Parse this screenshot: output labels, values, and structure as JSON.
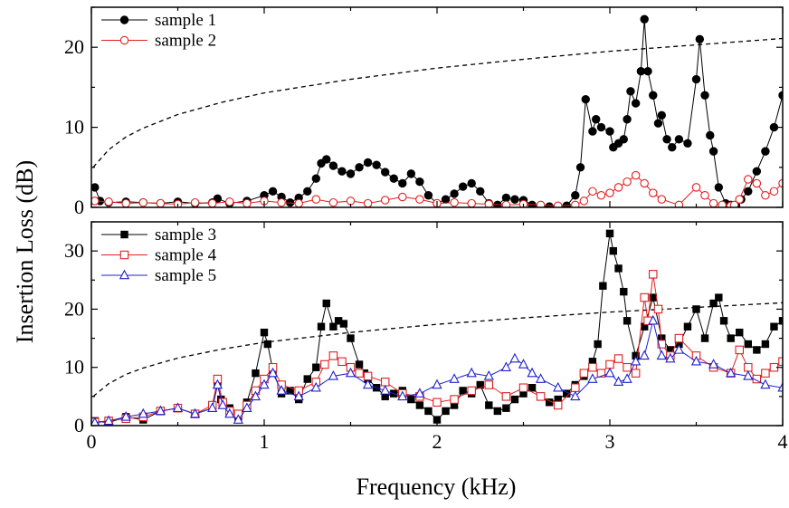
{
  "figure": {
    "ylabel": "Insertion Loss (dB)",
    "xlabel": "Frequency (kHz)"
  },
  "chart_data": [
    {
      "type": "scatter",
      "panel": "top",
      "xlim": [
        0,
        4
      ],
      "ylim": [
        0,
        25
      ],
      "yticks": [
        0,
        10,
        20
      ],
      "xticks": [
        0,
        1,
        2,
        3,
        4
      ],
      "legend_position": "top-left",
      "series": [
        {
          "name": "sample 1",
          "marker": "filled-circle",
          "color": "#000000",
          "x": [
            0.02,
            0.05,
            0.1,
            0.2,
            0.3,
            0.4,
            0.5,
            0.6,
            0.7,
            0.73,
            0.8,
            0.9,
            1.0,
            1.05,
            1.1,
            1.15,
            1.2,
            1.25,
            1.3,
            1.33,
            1.36,
            1.4,
            1.45,
            1.5,
            1.55,
            1.6,
            1.65,
            1.7,
            1.75,
            1.8,
            1.85,
            1.9,
            1.95,
            2.0,
            2.05,
            2.1,
            2.15,
            2.2,
            2.25,
            2.3,
            2.35,
            2.4,
            2.45,
            2.5,
            2.55,
            2.6,
            2.65,
            2.7,
            2.75,
            2.8,
            2.83,
            2.86,
            2.9,
            2.92,
            2.95,
            3.0,
            3.02,
            3.05,
            3.08,
            3.1,
            3.12,
            3.15,
            3.18,
            3.2,
            3.22,
            3.25,
            3.28,
            3.3,
            3.33,
            3.36,
            3.4,
            3.45,
            3.5,
            3.52,
            3.55,
            3.58,
            3.6,
            3.63,
            3.67,
            3.7,
            3.73,
            3.76,
            3.8,
            3.85,
            3.9,
            3.95,
            4.0
          ],
          "y": [
            2.5,
            0.8,
            0.6,
            0.7,
            0.6,
            0.5,
            0.7,
            0.5,
            0.6,
            1.1,
            0.5,
            0.8,
            1.5,
            2.0,
            1.3,
            0.6,
            1.2,
            2.0,
            3.6,
            5.5,
            6.0,
            5.2,
            4.5,
            4.2,
            5.0,
            5.6,
            5.3,
            4.4,
            3.6,
            3.0,
            4.2,
            3.2,
            1.5,
            0.5,
            1.0,
            1.7,
            2.6,
            3.0,
            2.0,
            0.5,
            0.3,
            1.2,
            1.0,
            0.9,
            0.3,
            0.1,
            0.1,
            0.1,
            0.2,
            1.5,
            5.0,
            13.5,
            9.5,
            11.0,
            10.0,
            9.5,
            7.5,
            8.0,
            8.5,
            11.0,
            14.5,
            13.0,
            17.0,
            23.5,
            17.0,
            14.0,
            10.5,
            11.5,
            8.5,
            7.5,
            8.5,
            8.0,
            16.0,
            21.0,
            14.0,
            9.0,
            7.0,
            2.5,
            0.5,
            0.3,
            0.2,
            1.0,
            2.0,
            4.5,
            7.0,
            10.0,
            14.0
          ]
        },
        {
          "name": "sample 2",
          "marker": "open-circle",
          "color": "#e02020",
          "x": [
            0.02,
            0.1,
            0.2,
            0.3,
            0.4,
            0.5,
            0.6,
            0.7,
            0.8,
            0.9,
            1.0,
            1.1,
            1.2,
            1.3,
            1.4,
            1.5,
            1.6,
            1.7,
            1.8,
            1.9,
            2.0,
            2.1,
            2.2,
            2.3,
            2.4,
            2.5,
            2.6,
            2.7,
            2.8,
            2.85,
            2.9,
            2.95,
            3.0,
            3.05,
            3.1,
            3.15,
            3.2,
            3.25,
            3.3,
            3.4,
            3.5,
            3.55,
            3.6,
            3.65,
            3.7,
            3.72,
            3.75,
            3.8,
            3.85,
            3.9,
            3.95,
            4.0
          ],
          "y": [
            0.8,
            0.7,
            0.5,
            0.6,
            0.5,
            0.4,
            0.6,
            0.5,
            0.7,
            0.5,
            0.8,
            0.6,
            0.5,
            1.0,
            0.6,
            0.8,
            0.5,
            0.9,
            1.3,
            1.0,
            0.5,
            0.6,
            0.5,
            0.4,
            0.3,
            0.4,
            0.3,
            0.2,
            0.3,
            0.8,
            2.0,
            1.5,
            1.8,
            2.5,
            3.2,
            4.0,
            3.0,
            1.8,
            1.0,
            0.3,
            2.5,
            1.5,
            0.5,
            0.3,
            0.2,
            0.3,
            1.0,
            3.5,
            3.0,
            1.5,
            2.0,
            3.0
          ]
        }
      ],
      "reference_curve": {
        "style": "dashed",
        "x": [
          0.01,
          0.1,
          0.2,
          0.3,
          0.5,
          0.75,
          1.0,
          1.5,
          2.0,
          2.5,
          3.0,
          3.5,
          4.0
        ],
        "y": [
          5.0,
          7.2,
          8.8,
          9.9,
          11.6,
          13.1,
          14.3,
          16.0,
          17.4,
          18.5,
          19.5,
          20.3,
          21.1
        ]
      }
    },
    {
      "type": "scatter",
      "panel": "bottom",
      "xlim": [
        0,
        4
      ],
      "ylim": [
        0,
        35
      ],
      "yticks": [
        0,
        10,
        20,
        30
      ],
      "xticks": [
        0,
        1,
        2,
        3,
        4
      ],
      "legend_position": "top-left",
      "series": [
        {
          "name": "sample 3",
          "marker": "filled-square",
          "color": "#000000",
          "x": [
            0.02,
            0.1,
            0.2,
            0.3,
            0.4,
            0.5,
            0.6,
            0.7,
            0.73,
            0.75,
            0.8,
            0.85,
            0.9,
            0.95,
            1.0,
            1.02,
            1.05,
            1.1,
            1.15,
            1.2,
            1.25,
            1.3,
            1.33,
            1.36,
            1.4,
            1.43,
            1.46,
            1.5,
            1.55,
            1.58,
            1.6,
            1.65,
            1.7,
            1.75,
            1.8,
            1.85,
            1.9,
            1.95,
            2.0,
            2.05,
            2.1,
            2.15,
            2.2,
            2.25,
            2.3,
            2.35,
            2.4,
            2.45,
            2.5,
            2.55,
            2.6,
            2.65,
            2.7,
            2.75,
            2.8,
            2.85,
            2.9,
            2.93,
            2.96,
            3.0,
            3.02,
            3.05,
            3.08,
            3.1,
            3.15,
            3.2,
            3.25,
            3.3,
            3.35,
            3.4,
            3.45,
            3.5,
            3.55,
            3.6,
            3.63,
            3.66,
            3.7,
            3.75,
            3.8,
            3.85,
            3.9,
            3.95,
            4.0
          ],
          "y": [
            0.8,
            0.5,
            1.5,
            1.0,
            2.5,
            3.0,
            2.0,
            3.0,
            7.0,
            4.5,
            3.0,
            1.5,
            4.0,
            9.0,
            16.0,
            14.0,
            9.5,
            5.5,
            6.0,
            4.5,
            8.0,
            10.0,
            17.0,
            21.0,
            17.0,
            18.0,
            17.5,
            15.0,
            10.5,
            9.0,
            8.0,
            6.5,
            5.0,
            5.5,
            6.0,
            4.5,
            3.5,
            2.5,
            1.0,
            2.5,
            3.5,
            6.0,
            5.5,
            7.0,
            3.5,
            2.5,
            3.0,
            4.5,
            5.5,
            6.5,
            5.0,
            4.0,
            4.5,
            5.5,
            7.0,
            8.5,
            11.0,
            14.0,
            24.0,
            33.0,
            30.0,
            27.0,
            23.0,
            18.0,
            12.0,
            17.0,
            22.0,
            15.0,
            13.0,
            14.0,
            17.0,
            20.0,
            15.0,
            21.0,
            22.0,
            18.0,
            15.0,
            16.0,
            14.0,
            13.0,
            14.0,
            17.0,
            18.0
          ]
        },
        {
          "name": "sample 4",
          "marker": "open-square",
          "color": "#e02020",
          "x": [
            0.02,
            0.1,
            0.2,
            0.3,
            0.4,
            0.5,
            0.6,
            0.7,
            0.73,
            0.76,
            0.8,
            0.85,
            0.9,
            0.95,
            1.0,
            1.05,
            1.1,
            1.2,
            1.3,
            1.35,
            1.4,
            1.45,
            1.5,
            1.55,
            1.6,
            1.7,
            1.8,
            1.9,
            2.0,
            2.1,
            2.2,
            2.3,
            2.4,
            2.5,
            2.6,
            2.7,
            2.8,
            2.85,
            2.9,
            2.95,
            3.0,
            3.05,
            3.1,
            3.15,
            3.2,
            3.22,
            3.25,
            3.28,
            3.3,
            3.35,
            3.4,
            3.5,
            3.6,
            3.7,
            3.75,
            3.8,
            3.85,
            3.9,
            3.95,
            4.0
          ],
          "y": [
            0.6,
            0.8,
            1.2,
            1.5,
            2.5,
            3.0,
            2.0,
            3.5,
            8.0,
            4.0,
            2.5,
            2.0,
            3.5,
            6.0,
            8.0,
            10.0,
            7.0,
            6.0,
            7.5,
            10.5,
            12.0,
            11.0,
            10.0,
            9.0,
            8.5,
            7.5,
            5.5,
            5.0,
            4.0,
            4.5,
            6.0,
            7.0,
            5.0,
            6.5,
            5.0,
            3.5,
            6.5,
            9.0,
            10.0,
            9.0,
            10.5,
            11.5,
            10.0,
            9.0,
            22.0,
            18.0,
            26.0,
            20.0,
            14.0,
            12.0,
            15.0,
            12.0,
            10.0,
            9.0,
            13.0,
            10.0,
            8.0,
            9.0,
            10.0,
            11.0
          ]
        },
        {
          "name": "sample 5",
          "marker": "open-triangle",
          "color": "#2020d0",
          "x": [
            0.02,
            0.1,
            0.2,
            0.3,
            0.4,
            0.5,
            0.6,
            0.7,
            0.73,
            0.76,
            0.8,
            0.85,
            0.9,
            0.95,
            1.0,
            1.05,
            1.1,
            1.2,
            1.3,
            1.4,
            1.5,
            1.6,
            1.7,
            1.8,
            1.9,
            2.0,
            2.1,
            2.2,
            2.3,
            2.4,
            2.45,
            2.5,
            2.55,
            2.6,
            2.7,
            2.8,
            2.9,
            3.0,
            3.05,
            3.1,
            3.15,
            3.2,
            3.25,
            3.3,
            3.35,
            3.4,
            3.5,
            3.6,
            3.7,
            3.8,
            3.9,
            4.0
          ],
          "y": [
            0.5,
            0.8,
            1.5,
            2.0,
            2.5,
            3.0,
            2.0,
            3.0,
            7.0,
            3.5,
            2.0,
            1.0,
            3.0,
            5.0,
            7.0,
            9.0,
            6.0,
            5.0,
            6.5,
            8.5,
            9.0,
            7.0,
            6.0,
            5.0,
            5.5,
            7.0,
            8.0,
            9.0,
            8.5,
            10.0,
            11.5,
            10.5,
            9.0,
            8.0,
            6.5,
            5.0,
            8.0,
            9.0,
            7.5,
            8.0,
            11.0,
            12.0,
            18.0,
            12.0,
            11.5,
            13.0,
            11.0,
            10.5,
            9.0,
            8.5,
            7.0,
            6.5
          ]
        }
      ],
      "reference_curve": {
        "style": "dashed",
        "x": [
          0.01,
          0.1,
          0.2,
          0.3,
          0.5,
          0.75,
          1.0,
          1.5,
          2.0,
          2.5,
          3.0,
          3.5,
          4.0
        ],
        "y": [
          5.0,
          7.2,
          8.8,
          9.9,
          11.6,
          13.1,
          14.3,
          16.0,
          17.4,
          18.5,
          19.5,
          20.3,
          21.1
        ]
      }
    }
  ]
}
